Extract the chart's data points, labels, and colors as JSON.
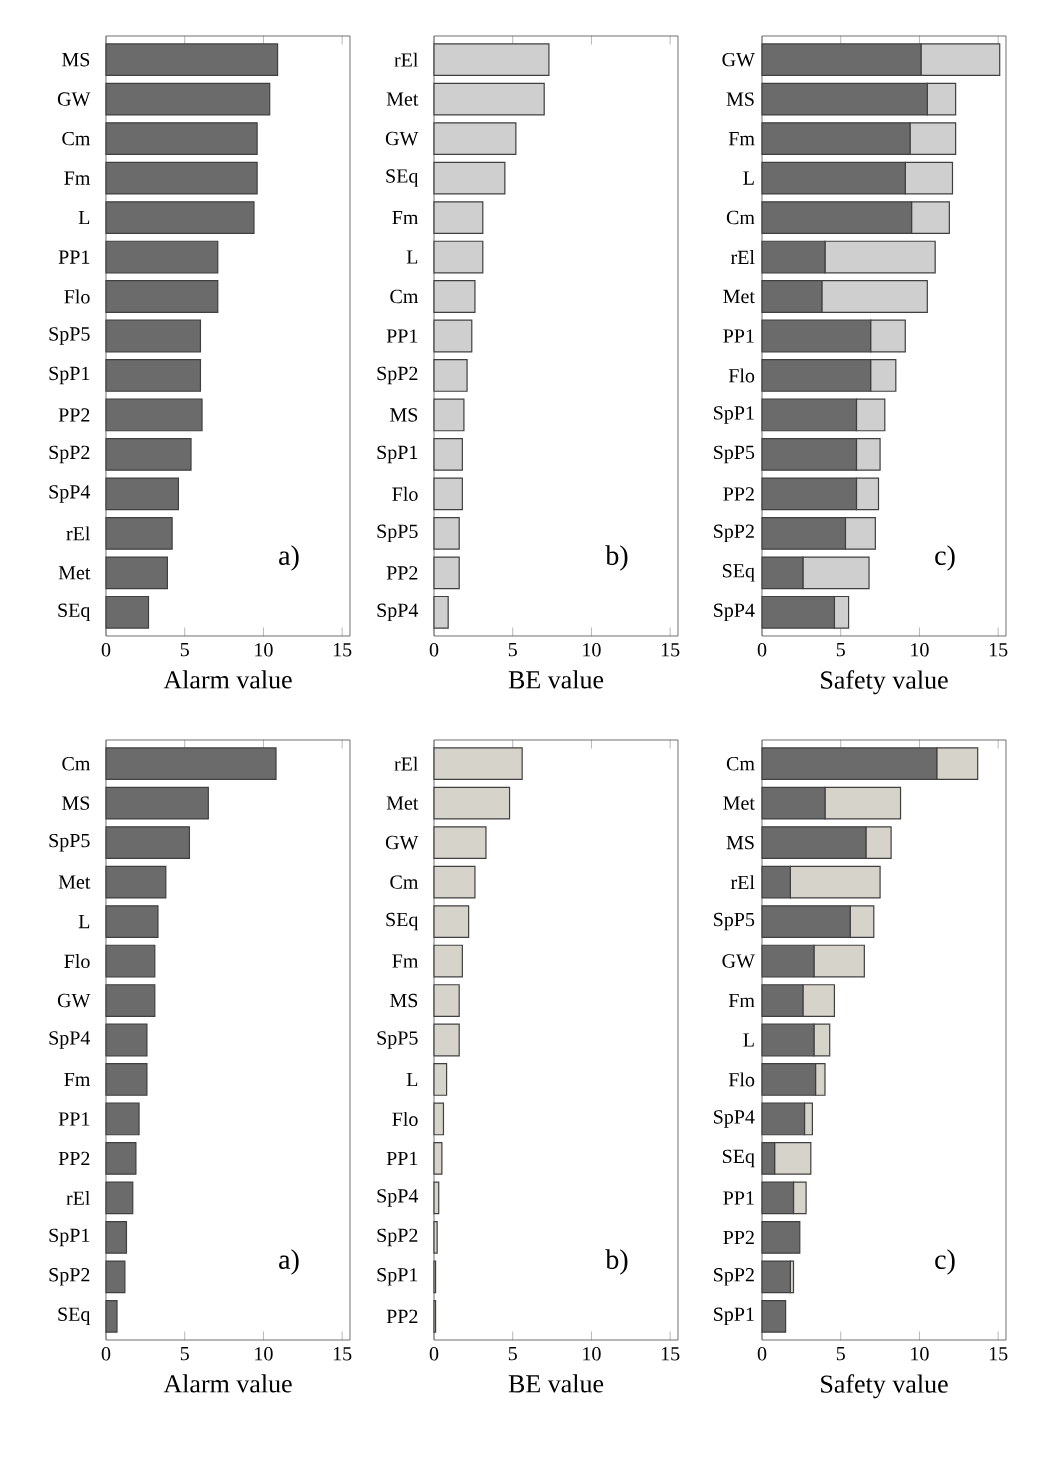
{
  "chart_data": [
    {
      "type": "bar",
      "orientation": "horizontal",
      "categories": [
        "MS",
        "GW",
        "Cm",
        "Fm",
        "L",
        "PP1",
        "Flo",
        "SpP5",
        "SpP1",
        "PP2",
        "SpP2",
        "SpP4",
        "rEl",
        "Met",
        "SEq"
      ],
      "series": [
        {
          "color": "#6b6b6b",
          "values": [
            10.9,
            10.4,
            9.6,
            9.6,
            9.4,
            7.1,
            7.1,
            6.0,
            6.0,
            6.1,
            5.4,
            4.6,
            4.2,
            3.9,
            2.7
          ]
        }
      ],
      "xlim": [
        0,
        15.5
      ],
      "xticks": [
        0,
        5,
        10,
        15
      ],
      "xlabel": "Alarm value",
      "annotations": [
        "a)"
      ]
    },
    {
      "type": "bar",
      "orientation": "horizontal",
      "categories": [
        "rEl",
        "Met",
        "GW",
        "SEq",
        "Fm",
        "L",
        "Cm",
        "PP1",
        "SpP2",
        "MS",
        "SpP1",
        "Flo",
        "SpP5",
        "PP2",
        "SpP4"
      ],
      "series": [
        {
          "color": "#cfcfcf",
          "values": [
            7.3,
            7.0,
            5.2,
            4.5,
            3.1,
            3.1,
            2.6,
            2.4,
            2.1,
            1.9,
            1.8,
            1.8,
            1.6,
            1.6,
            0.9
          ]
        }
      ],
      "xlim": [
        0,
        15.5
      ],
      "xticks": [
        0,
        5,
        10,
        15
      ],
      "xlabel": "BE value",
      "annotations": [
        "b)"
      ]
    },
    {
      "type": "bar",
      "orientation": "horizontal",
      "stacked": true,
      "categories": [
        "GW",
        "MS",
        "Fm",
        "L",
        "Cm",
        "rEl",
        "Met",
        "PP1",
        "Flo",
        "SpP1",
        "SpP5",
        "PP2",
        "SpP2",
        "SEq",
        "SpP4"
      ],
      "series": [
        {
          "color": "#6b6b6b",
          "values": [
            10.1,
            10.5,
            9.4,
            9.1,
            9.5,
            4.0,
            3.8,
            6.9,
            6.9,
            6.0,
            6.0,
            6.0,
            5.3,
            2.6,
            4.6
          ]
        },
        {
          "color": "#cfcfcf",
          "values": [
            5.0,
            1.8,
            2.9,
            3.0,
            2.4,
            7.0,
            6.7,
            2.2,
            1.6,
            1.8,
            1.5,
            1.4,
            1.9,
            4.2,
            0.9
          ]
        }
      ],
      "xlim": [
        0,
        15.5
      ],
      "xticks": [
        0,
        5,
        10,
        15
      ],
      "xlabel": "Safety value",
      "annotations": [
        "c)"
      ]
    },
    {
      "type": "bar",
      "orientation": "horizontal",
      "categories": [
        "Cm",
        "MS",
        "SpP5",
        "Met",
        "L",
        "Flo",
        "GW",
        "SpP4",
        "Fm",
        "PP1",
        "PP2",
        "rEl",
        "SpP1",
        "SpP2",
        "SEq"
      ],
      "series": [
        {
          "color": "#6b6b6b",
          "values": [
            10.8,
            6.5,
            5.3,
            3.8,
            3.3,
            3.1,
            3.1,
            2.6,
            2.6,
            2.1,
            1.9,
            1.7,
            1.3,
            1.2,
            0.7
          ]
        }
      ],
      "xlim": [
        0,
        15.5
      ],
      "xticks": [
        0,
        5,
        10,
        15
      ],
      "xlabel": "Alarm value",
      "annotations": [
        "a)"
      ]
    },
    {
      "type": "bar",
      "orientation": "horizontal",
      "categories": [
        "rEl",
        "Met",
        "GW",
        "Cm",
        "SEq",
        "Fm",
        "MS",
        "SpP5",
        "L",
        "Flo",
        "PP1",
        "SpP4",
        "SpP2",
        "SpP1",
        "PP2"
      ],
      "series": [
        {
          "color": "#d6d3ca",
          "values": [
            5.6,
            4.8,
            3.3,
            2.6,
            2.2,
            1.8,
            1.6,
            1.6,
            0.8,
            0.6,
            0.5,
            0.3,
            0.2,
            0.1,
            0.1
          ]
        }
      ],
      "xlim": [
        0,
        15.5
      ],
      "xticks": [
        0,
        5,
        10,
        15
      ],
      "xlabel": "BE value",
      "annotations": [
        "b)"
      ]
    },
    {
      "type": "bar",
      "orientation": "horizontal",
      "stacked": true,
      "categories": [
        "Cm",
        "Met",
        "MS",
        "rEl",
        "SpP5",
        "GW",
        "Fm",
        "L",
        "Flo",
        "SpP4",
        "SEq",
        "PP1",
        "PP2",
        "SpP2",
        "SpP1"
      ],
      "series": [
        {
          "color": "#6b6b6b",
          "values": [
            11.1,
            4.0,
            6.6,
            1.8,
            5.6,
            3.3,
            2.6,
            3.3,
            3.4,
            2.7,
            0.8,
            2.0,
            2.4,
            1.8,
            1.5
          ]
        },
        {
          "color": "#d6d3ca",
          "values": [
            2.6,
            4.8,
            1.6,
            5.7,
            1.5,
            3.2,
            2.0,
            1.0,
            0.6,
            0.5,
            2.3,
            0.8,
            null,
            0.2,
            null
          ]
        }
      ],
      "xlim": [
        0,
        15.5
      ],
      "xticks": [
        0,
        5,
        10,
        15
      ],
      "xlabel": "Safety value",
      "annotations": [
        "c)"
      ]
    }
  ]
}
